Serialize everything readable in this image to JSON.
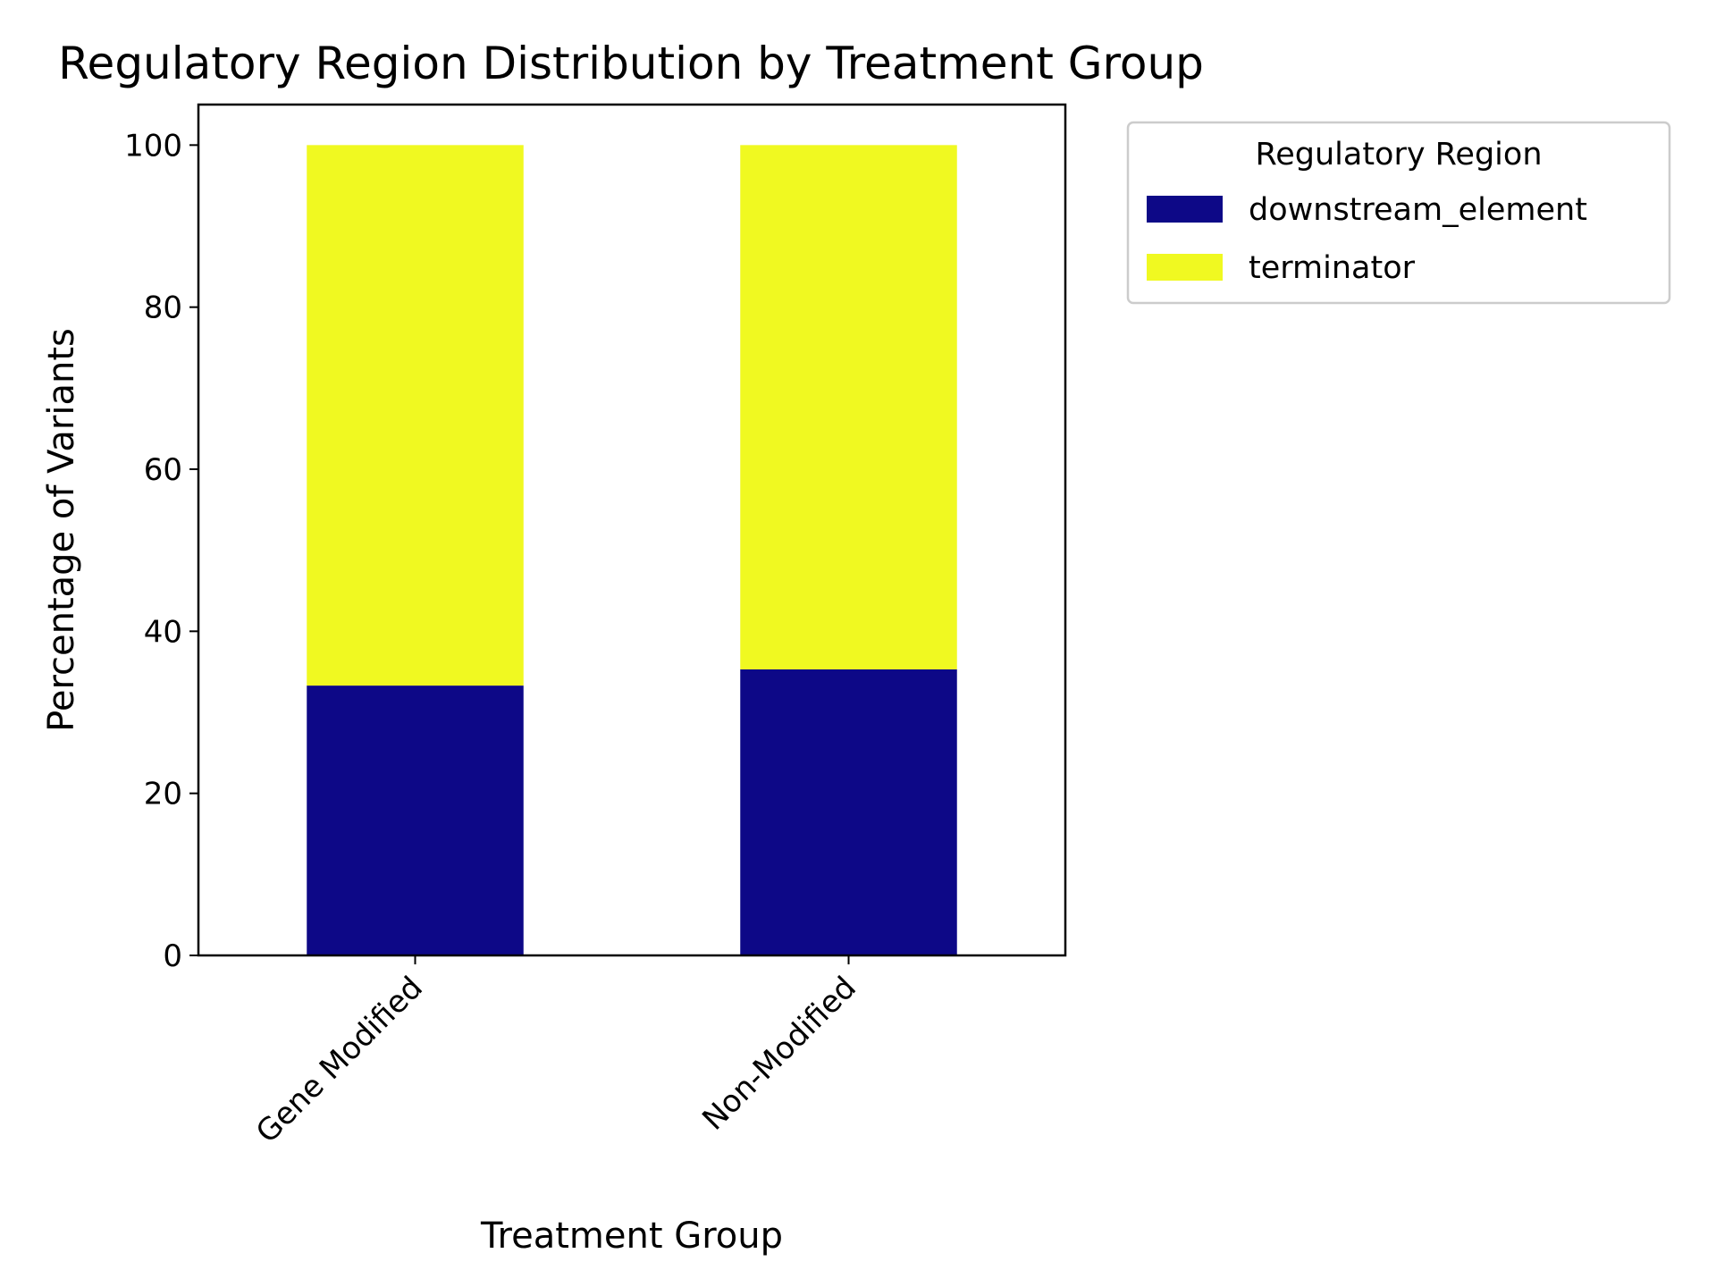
{
  "chart_data": {
    "type": "bar",
    "stacked": true,
    "title": "Regulatory Region Distribution by Treatment Group",
    "xlabel": "Treatment Group",
    "ylabel": "Percentage of Variants",
    "categories": [
      "Gene Modified",
      "Non-Modified"
    ],
    "series": [
      {
        "name": "downstream_element",
        "values": [
          33.3,
          35.3
        ],
        "color": "#0d0887"
      },
      {
        "name": "terminator",
        "values": [
          66.7,
          64.7
        ],
        "color": "#f0f921"
      }
    ],
    "ylim": [
      0,
      105
    ],
    "yticks": [
      0,
      20,
      40,
      60,
      80,
      100
    ],
    "legend": {
      "title": "Regulatory Region",
      "placement": "outside-right-top"
    },
    "grid": false
  }
}
